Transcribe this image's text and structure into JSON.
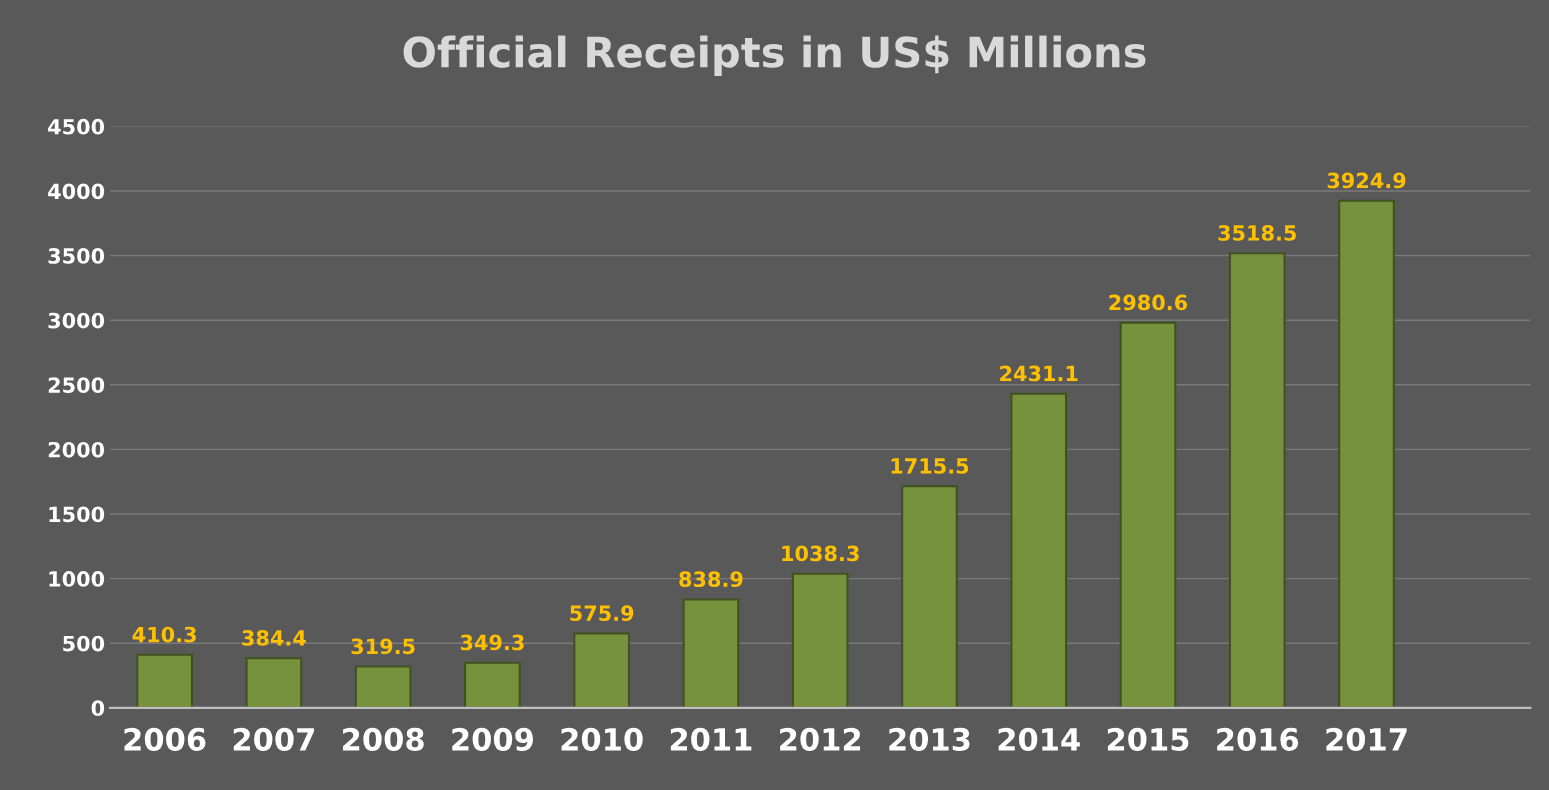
{
  "chart_data": {
    "type": "bar",
    "title": "Official Receipts in US$ Millions",
    "categories": [
      "2006",
      "2007",
      "2008",
      "2009",
      "2010",
      "2011",
      "2012",
      "2013",
      "2014",
      "2015",
      "2016",
      "2017"
    ],
    "values": [
      410.3,
      384.4,
      319.5,
      349.3,
      575.9,
      838.9,
      1038.3,
      1715.5,
      2431.1,
      2980.6,
      3518.5,
      3924.9
    ],
    "color": "#76923c",
    "data_labels": true,
    "ylim": [
      0,
      4500
    ],
    "yticks": [
      0,
      500,
      1000,
      1500,
      2000,
      2500,
      3000,
      3500,
      4000,
      4500
    ],
    "grid": "y",
    "legend": false
  }
}
